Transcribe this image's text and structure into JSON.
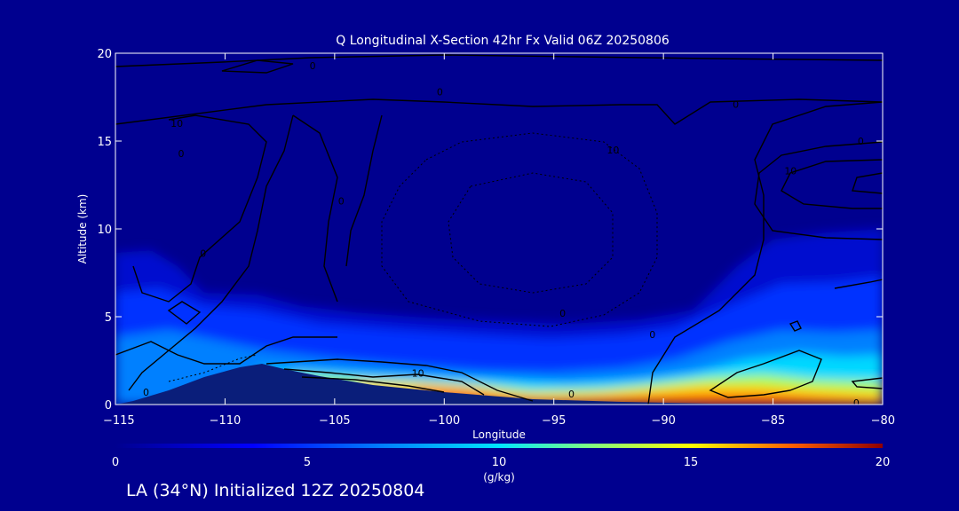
{
  "chart_data": {
    "type": "heatmap",
    "title": "Q Longitudinal X-Section 42hr  Fx Valid 06Z 20250806",
    "xlabel": "Longitude",
    "ylabel": "Altitude (km)",
    "xlim": [
      -115,
      -80
    ],
    "ylim": [
      0,
      20
    ],
    "x_ticks": [
      -115,
      -110,
      -105,
      -100,
      -95,
      -90,
      -85,
      -80
    ],
    "x_tick_labels": [
      "−115",
      "−110",
      "−105",
      "−100",
      "−95",
      "−90",
      "−85",
      "−80"
    ],
    "y_ticks": [
      0,
      5,
      10,
      15,
      20
    ],
    "y_tick_labels": [
      "0",
      "5",
      "10",
      "15",
      "20"
    ],
    "colorbar": {
      "label": "(g/kg)",
      "min": 0,
      "max": 20,
      "ticks": [
        0,
        5,
        10,
        15,
        20
      ],
      "tick_labels": [
        "0",
        "5",
        "10",
        "15",
        "20"
      ]
    },
    "field": {
      "description_units": "g/kg",
      "surface_humidity_by_longitude": [
        {
          "lon": -115,
          "q": 3.5
        },
        {
          "lon": -113,
          "q": 4.5
        },
        {
          "lon": -110,
          "q": 5.5
        },
        {
          "lon": -108,
          "q": 6.0
        },
        {
          "lon": -105,
          "q": 10.5
        },
        {
          "lon": -102,
          "q": 12.5
        },
        {
          "lon": -99,
          "q": 15.5
        },
        {
          "lon": -97,
          "q": 16.0
        },
        {
          "lon": -95,
          "q": 14.5
        },
        {
          "lon": -92,
          "q": 17.5
        },
        {
          "lon": -89,
          "q": 16.5
        },
        {
          "lon": -87,
          "q": 15.0
        },
        {
          "lon": -85,
          "q": 16.5
        },
        {
          "lon": -82,
          "q": 14.5
        },
        {
          "lon": -80,
          "q": 13.5
        }
      ],
      "moist_layer_top_km_by_longitude": [
        {
          "lon": -115,
          "z": 8.5
        },
        {
          "lon": -112,
          "z": 9.0
        },
        {
          "lon": -109,
          "z": 6.0
        },
        {
          "lon": -105,
          "z": 5.0
        },
        {
          "lon": -100,
          "z": 4.5
        },
        {
          "lon": -95,
          "z": 4.0
        },
        {
          "lon": -90,
          "z": 5.0
        },
        {
          "lon": -87,
          "z": 8.0
        },
        {
          "lon": -83,
          "z": 10.0
        },
        {
          "lon": -80,
          "z": 10.5
        }
      ],
      "terrain_height_km_by_longitude": [
        {
          "lon": -115,
          "z": 0.2
        },
        {
          "lon": -112,
          "z": 0.8
        },
        {
          "lon": -110,
          "z": 1.8
        },
        {
          "lon": -108.5,
          "z": 2.4
        },
        {
          "lon": -107,
          "z": 2.0
        },
        {
          "lon": -105,
          "z": 1.6
        },
        {
          "lon": -100,
          "z": 0.9
        },
        {
          "lon": -95,
          "z": 0.4
        },
        {
          "lon": -90,
          "z": 0.2
        },
        {
          "lon": -85,
          "z": 0.1
        },
        {
          "lon": -80,
          "z": 0.0
        }
      ]
    },
    "contour_labels": [
      {
        "text": "10",
        "lon": -112.2,
        "z": 16.0
      },
      {
        "text": "10",
        "lon": -92.3,
        "z": 14.5
      },
      {
        "text": "0",
        "lon": -112.0,
        "z": 14.3
      },
      {
        "text": "0",
        "lon": -104.7,
        "z": 11.6
      },
      {
        "text": "0",
        "lon": -111.0,
        "z": 8.6
      },
      {
        "text": "0",
        "lon": -100.2,
        "z": 17.8
      },
      {
        "text": "0",
        "lon": -106.0,
        "z": 19.3
      },
      {
        "text": "0",
        "lon": -86.7,
        "z": 17.1
      },
      {
        "text": "0",
        "lon": -81.0,
        "z": 15.0
      },
      {
        "text": "10",
        "lon": -84.2,
        "z": 13.3
      },
      {
        "text": "0",
        "lon": -94.6,
        "z": 5.2
      },
      {
        "text": "0",
        "lon": -90.5,
        "z": 4.0
      },
      {
        "text": "10",
        "lon": -101.2,
        "z": 1.8
      },
      {
        "text": "0",
        "lon": -113.6,
        "z": 0.7
      },
      {
        "text": "0",
        "lon": -94.2,
        "z": 0.6
      },
      {
        "text": "0",
        "lon": -81.2,
        "z": 0.1
      }
    ]
  },
  "footer": {
    "station_text": "LA (34°N) Initialized 12Z 20250804"
  },
  "colors": {
    "background": "#00008f",
    "frame": "#ffffff",
    "terrain": "#0a1e7a",
    "contour": "#000000"
  }
}
